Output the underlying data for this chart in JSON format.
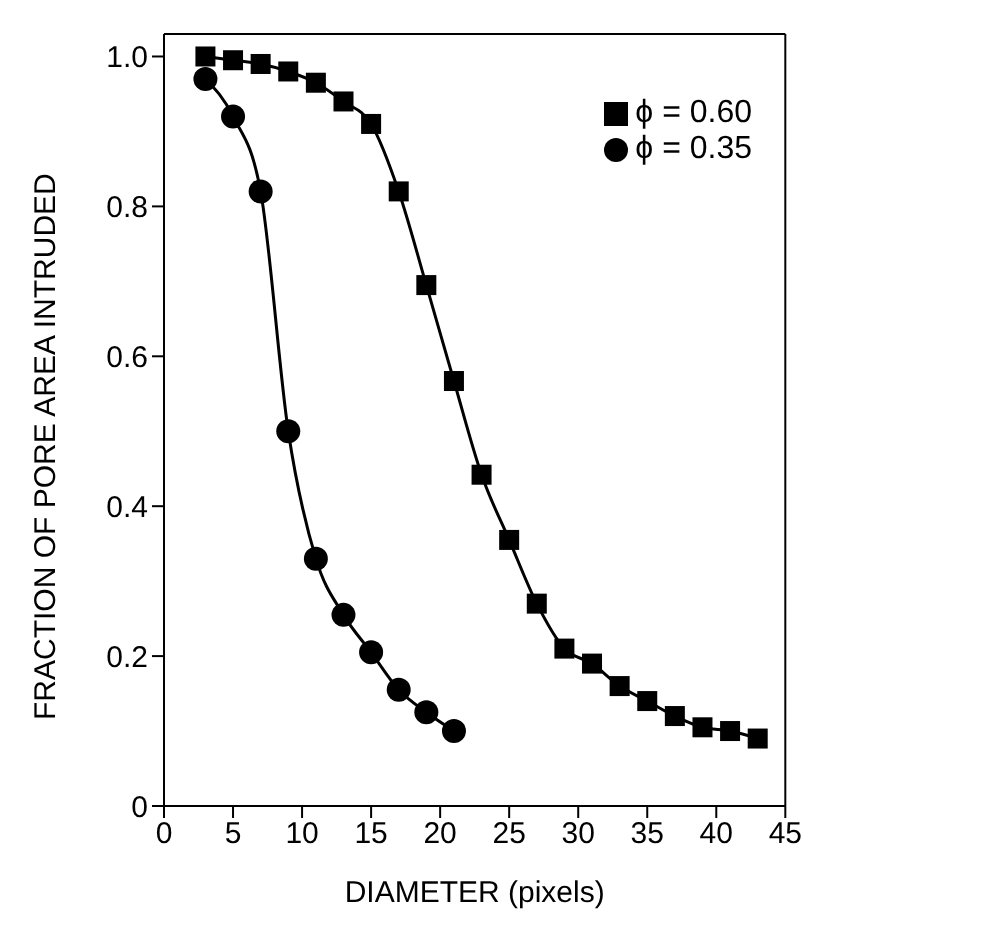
{
  "chart_data": {
    "type": "line",
    "xlabel": "DIAMETER (pixels)",
    "ylabel": "FRACTION OF PORE AREA INTRUDED",
    "xlim": [
      0,
      45
    ],
    "xticks": [
      0,
      5,
      10,
      15,
      20,
      25,
      30,
      35,
      40,
      45
    ],
    "ylim": [
      0,
      1.03
    ],
    "yticks": [
      0,
      0.2,
      0.4,
      0.6,
      0.8,
      {
        "value": 1,
        "label": "1.0"
      }
    ],
    "legend": "top right",
    "grid": false,
    "line_style": "solid",
    "series": [
      {
        "name": "ϕ = 0.60",
        "color": "#000000",
        "marker": "square",
        "x": [
          3,
          5,
          7,
          9,
          11,
          13,
          15,
          17,
          19,
          21,
          23,
          25,
          27,
          29,
          31,
          33,
          35,
          37,
          39,
          41,
          43
        ],
        "values": [
          1.0,
          0.995,
          0.99,
          0.98,
          0.965,
          0.94,
          0.91,
          0.82,
          0.695,
          0.567,
          0.442,
          0.355,
          0.27,
          0.21,
          0.19,
          0.16,
          0.14,
          0.12,
          0.105,
          0.1,
          0.09
        ]
      },
      {
        "name": "ϕ = 0.35",
        "color": "#000000",
        "marker": "circle",
        "x": [
          3,
          5,
          7,
          9,
          11,
          13,
          15,
          17,
          19,
          21
        ],
        "values": [
          0.97,
          0.92,
          0.82,
          0.5,
          0.33,
          0.255,
          0.205,
          0.155,
          0.125,
          0.1
        ]
      }
    ]
  }
}
